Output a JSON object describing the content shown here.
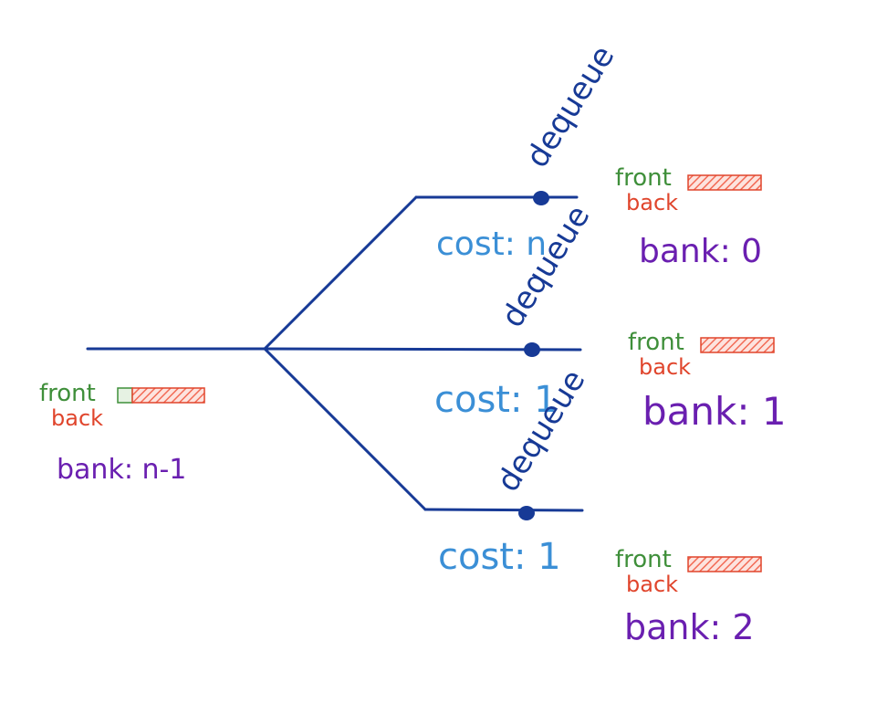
{
  "root": {
    "front_label": "front",
    "back_label": "back",
    "bank_label": "bank: n-1"
  },
  "branches": [
    {
      "action_label": "dequeue",
      "cost_label": "cost: n",
      "front_label": "front",
      "back_label": "back",
      "bank_label": "bank: 0"
    },
    {
      "action_label": "dequeue",
      "cost_label": "cost: 1",
      "front_label": "front",
      "back_label": "back",
      "bank_label": "bank: 1"
    },
    {
      "action_label": "dequeue",
      "cost_label": "cost: 1",
      "front_label": "front",
      "back_label": "back",
      "bank_label": "bank: 2"
    }
  ],
  "colors": {
    "tree_line": "#173a96",
    "front": "#3f8f3a",
    "back": "#e0452c",
    "bank": "#6a1fb0",
    "cost": "#3b8fd6",
    "queue_fill": "#f26a55"
  }
}
